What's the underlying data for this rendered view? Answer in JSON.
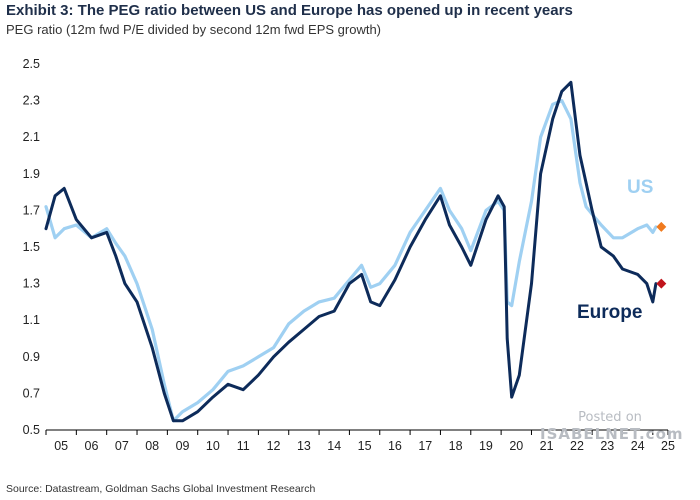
{
  "header": {
    "title": "Exhibit 3: The PEG ratio between US and Europe has opened up in recent years",
    "subtitle": "PEG ratio (12m fwd P/E divided by second 12m fwd EPS growth)"
  },
  "footer": {
    "source": "Source: Datastream, Goldman Sachs Global Investment Research"
  },
  "watermark": {
    "line1": "Posted on",
    "line2": "ISABELNET.com"
  },
  "colors": {
    "us": "#9fd0f2",
    "europe": "#0d2b5a",
    "us_marker": "#f07a1e",
    "europe_marker": "#c0141c",
    "axis": "#000000",
    "tick_text": "#222222"
  },
  "chart_data": {
    "type": "line",
    "title": "The PEG ratio between US and Europe has opened up in recent years",
    "ylabel": "PEG ratio (12m fwd P/E divided by second 12m fwd EPS growth)",
    "xlabel": "",
    "xlim": [
      2005,
      2025.5
    ],
    "ylim": [
      0.5,
      2.5
    ],
    "yticks": [
      0.5,
      0.7,
      0.9,
      1.1,
      1.3,
      1.5,
      1.7,
      1.9,
      2.1,
      2.3,
      2.5
    ],
    "ytick_labels": [
      "0.5",
      "0.7",
      "0.9",
      "1.1",
      "1.3",
      "1.5",
      "1.7",
      "1.9",
      "2.1",
      "2.3",
      "2.5"
    ],
    "xtick_labels": [
      "05",
      "06",
      "07",
      "08",
      "09",
      "10",
      "11",
      "12",
      "13",
      "14",
      "15",
      "16",
      "17",
      "18",
      "19",
      "20",
      "21",
      "22",
      "23",
      "24",
      "25"
    ],
    "series": [
      {
        "name": "US",
        "label": "US",
        "x": [
          2005.0,
          2005.3,
          2005.6,
          2006.0,
          2006.5,
          2007.0,
          2007.3,
          2007.6,
          2008.0,
          2008.5,
          2008.9,
          2009.2,
          2009.5,
          2010.0,
          2010.5,
          2011.0,
          2011.5,
          2012.0,
          2012.5,
          2013.0,
          2013.5,
          2014.0,
          2014.5,
          2015.0,
          2015.4,
          2015.7,
          2016.0,
          2016.5,
          2017.0,
          2017.5,
          2018.0,
          2018.3,
          2018.7,
          2019.0,
          2019.5,
          2019.9,
          2020.1,
          2020.2,
          2020.35,
          2020.6,
          2021.0,
          2021.3,
          2021.7,
          2022.0,
          2022.3,
          2022.6,
          2022.8,
          2023.0,
          2023.3,
          2023.7,
          2024.0,
          2024.5,
          2024.8,
          2025.0,
          2025.1
        ],
        "y": [
          1.72,
          1.55,
          1.6,
          1.62,
          1.55,
          1.6,
          1.52,
          1.45,
          1.3,
          1.05,
          0.75,
          0.55,
          0.6,
          0.65,
          0.72,
          0.82,
          0.85,
          0.9,
          0.95,
          1.08,
          1.15,
          1.2,
          1.22,
          1.32,
          1.4,
          1.28,
          1.3,
          1.4,
          1.58,
          1.7,
          1.82,
          1.7,
          1.6,
          1.48,
          1.7,
          1.75,
          1.7,
          1.2,
          1.18,
          1.42,
          1.75,
          2.1,
          2.28,
          2.3,
          2.2,
          1.85,
          1.72,
          1.68,
          1.62,
          1.55,
          1.55,
          1.6,
          1.62,
          1.58,
          1.61
        ],
        "end_marker": 1.61
      },
      {
        "name": "Europe",
        "label": "Europe",
        "x": [
          2005.0,
          2005.3,
          2005.6,
          2006.0,
          2006.5,
          2007.0,
          2007.3,
          2007.6,
          2008.0,
          2008.5,
          2008.9,
          2009.2,
          2009.5,
          2010.0,
          2010.5,
          2011.0,
          2011.5,
          2012.0,
          2012.5,
          2013.0,
          2013.5,
          2014.0,
          2014.5,
          2015.0,
          2015.4,
          2015.7,
          2016.0,
          2016.5,
          2017.0,
          2017.5,
          2018.0,
          2018.3,
          2018.7,
          2019.0,
          2019.5,
          2019.9,
          2020.1,
          2020.2,
          2020.35,
          2020.6,
          2021.0,
          2021.3,
          2021.7,
          2022.0,
          2022.3,
          2022.6,
          2022.8,
          2023.0,
          2023.3,
          2023.7,
          2024.0,
          2024.5,
          2024.8,
          2025.0,
          2025.1
        ],
        "y": [
          1.6,
          1.78,
          1.82,
          1.65,
          1.55,
          1.58,
          1.45,
          1.3,
          1.2,
          0.95,
          0.7,
          0.55,
          0.55,
          0.6,
          0.68,
          0.75,
          0.72,
          0.8,
          0.9,
          0.98,
          1.05,
          1.12,
          1.15,
          1.3,
          1.35,
          1.2,
          1.18,
          1.32,
          1.5,
          1.65,
          1.78,
          1.62,
          1.5,
          1.4,
          1.65,
          1.78,
          1.72,
          1.0,
          0.68,
          0.8,
          1.3,
          1.9,
          2.2,
          2.35,
          2.4,
          2.0,
          1.85,
          1.7,
          1.5,
          1.45,
          1.38,
          1.35,
          1.3,
          1.2,
          1.3
        ],
        "end_marker": 1.3
      }
    ],
    "annotations": [
      {
        "text": "US",
        "near_series": "US"
      },
      {
        "text": "Europe",
        "near_series": "Europe"
      }
    ]
  }
}
